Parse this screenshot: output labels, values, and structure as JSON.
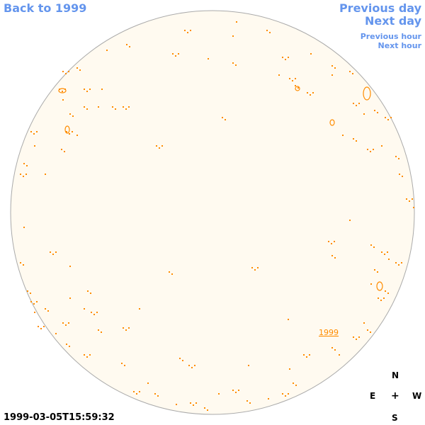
{
  "nav": {
    "back_label": "Back to 1999",
    "prev_day_label": "Previous day",
    "next_day_label": "Next day",
    "prev_hour_label": "Previous hour",
    "next_hour_label": "Next hour"
  },
  "disk": {
    "fill_color": "#fffaf0",
    "border_color": "#aaaaaa",
    "contour_color": "#ff8c00",
    "year_label": "1999"
  },
  "compass": {
    "north": "N",
    "east": "E",
    "center": "+",
    "west": "W",
    "south": "S"
  },
  "timestamp": "1999-03-05T15:59:32",
  "colors": {
    "link": "#6495ed",
    "text": "#000000"
  }
}
